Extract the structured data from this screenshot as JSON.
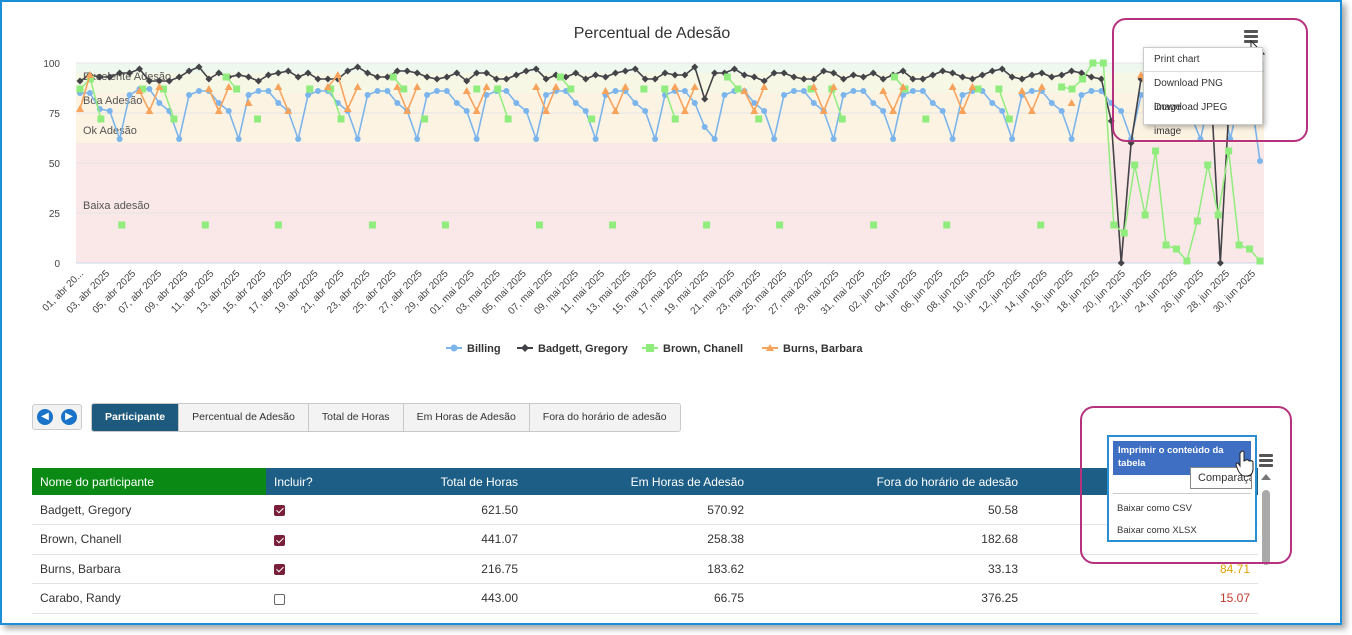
{
  "chart_data": {
    "type": "line",
    "title": "Percentual de Adesão",
    "xlabel": "",
    "ylabel": "",
    "ylim": [
      0,
      100
    ],
    "yticks": [
      0,
      25,
      50,
      75,
      100
    ],
    "bands": [
      {
        "label": "Excelente Adesão",
        "from": 95,
        "to": 100,
        "color": "#eef8ee"
      },
      {
        "label": "Boa Adesão",
        "from": 85,
        "to": 95,
        "color": "#f7f7e6"
      },
      {
        "label": "Ok Adesão",
        "from": 60,
        "to": 85,
        "color": "#fdf3e3"
      },
      {
        "label": "Baixa adesão",
        "from": 0,
        "to": 60,
        "color": "#fae8e8"
      }
    ],
    "x_tick_labels": [
      "01, abr 20...",
      "03, abr 2025",
      "05, abr 2025",
      "07, abr 2025",
      "09, abr 2025",
      "11, abr 2025",
      "13, abr 2025",
      "15, abr 2025",
      "17, abr 2025",
      "19, abr 2025",
      "21, abr 2025",
      "23, abr 2025",
      "25, abr 2025",
      "27, abr 2025",
      "29, abr 2025",
      "01, mai 2025",
      "03, mai 2025",
      "05, mai 2025",
      "07, mai 2025",
      "09, mai 2025",
      "11, mai 2025",
      "13, mai 2025",
      "15, mai 2025",
      "17, mai 2025",
      "19, mai 2025",
      "21, mai 2025",
      "23, mai 2025",
      "25, mai 2025",
      "27, mai 2025",
      "29, mai 2025",
      "31, mai 2025",
      "02, jun 2025",
      "04, jun 2025",
      "06, jun 2025",
      "08, jun 2025",
      "10, jun 2025",
      "12, jun 2025",
      "14, jun 2025",
      "16, jun 2025",
      "18, jun 2025",
      "20, jun 2025",
      "22, jun 2025",
      "24, jun 2025",
      "26, jun 2025",
      "28, jun 2025",
      "30, jun 2025"
    ],
    "legend_position": "bottom-center",
    "series": [
      {
        "name": "Billing",
        "color": "#7cb5ec",
        "marker": "circle",
        "values": [
          85,
          85,
          77,
          76,
          62,
          84,
          87,
          87,
          80,
          76,
          62,
          84,
          86,
          86,
          80,
          76,
          62,
          84,
          86,
          86,
          80,
          76,
          62,
          84,
          86,
          86,
          80,
          76,
          62,
          84,
          86,
          86,
          80,
          76,
          62,
          84,
          86,
          86,
          80,
          76,
          62,
          84,
          86,
          86,
          80,
          76,
          62,
          84,
          86,
          86,
          80,
          76,
          62,
          84,
          86,
          86,
          80,
          76,
          62,
          84,
          86,
          86,
          80,
          68,
          62,
          84,
          86,
          86,
          80,
          76,
          62,
          84,
          86,
          86,
          80,
          76,
          62,
          84,
          86,
          86,
          80,
          76,
          62,
          84,
          86,
          86,
          80,
          76,
          62,
          84,
          86,
          86,
          80,
          76,
          62,
          84,
          86,
          86,
          80,
          76,
          62,
          84,
          86,
          86,
          80,
          76,
          62,
          84,
          84,
          85,
          84,
          80,
          74,
          62,
          84,
          86,
          62,
          84,
          86,
          51
        ]
      },
      {
        "name": "Badgett, Gregory",
        "color": "#434348",
        "marker": "diamond",
        "values": [
          91,
          94,
          93,
          93,
          95,
          95,
          97,
          91,
          91,
          91,
          93,
          96,
          98,
          92,
          95,
          93,
          94,
          93,
          91,
          94,
          95,
          96,
          93,
          95,
          92,
          92,
          92,
          96,
          98,
          95,
          93,
          93,
          96,
          96,
          95,
          93,
          92,
          93,
          95,
          91,
          95,
          95,
          92,
          92,
          94,
          96,
          97,
          92,
          94,
          93,
          95,
          92,
          94,
          93,
          95,
          96,
          97,
          92,
          92,
          95,
          94,
          94,
          98,
          82,
          95,
          95,
          97,
          94,
          93,
          91,
          95,
          95,
          93,
          92,
          92,
          96,
          95,
          92,
          94,
          93,
          95,
          92,
          94,
          96,
          92,
          92,
          94,
          96,
          95,
          93,
          92,
          94,
          96,
          97,
          93,
          92,
          94,
          95,
          93,
          94,
          96,
          95,
          93,
          92,
          71,
          0,
          60,
          92,
          93,
          94,
          95,
          94,
          93,
          94,
          92,
          0,
          90,
          93,
          94,
          96
        ]
      },
      {
        "name": "Brown, Chanell",
        "color": "#90ed7d",
        "marker": "square",
        "values": [
          87,
          92,
          72,
          null,
          19,
          null,
          87,
          null,
          87,
          72,
          null,
          null,
          19,
          null,
          93,
          87,
          null,
          72,
          null,
          19,
          null,
          null,
          87,
          null,
          87,
          72,
          null,
          null,
          19,
          null,
          93,
          87,
          null,
          72,
          null,
          19,
          null,
          null,
          87,
          null,
          87,
          72,
          null,
          null,
          19,
          null,
          93,
          87,
          null,
          72,
          null,
          19,
          null,
          null,
          87,
          null,
          87,
          72,
          null,
          null,
          19,
          null,
          93,
          87,
          null,
          72,
          null,
          19,
          null,
          null,
          87,
          null,
          87,
          72,
          null,
          null,
          19,
          null,
          93,
          87,
          null,
          72,
          null,
          19,
          null,
          null,
          87,
          null,
          87,
          72,
          null,
          null,
          19,
          null,
          88,
          87,
          92,
          100,
          100,
          19,
          15,
          49,
          24,
          56,
          9,
          7,
          1,
          21,
          49,
          24,
          56,
          9,
          7,
          1
        ]
      },
      {
        "name": "Burns, Barbara",
        "color": "#f7a35c",
        "marker": "triangle",
        "values": [
          77,
          94,
          null,
          null,
          null,
          null,
          86,
          76,
          88,
          null,
          null,
          null,
          null,
          87,
          76,
          88,
          null,
          80,
          null,
          null,
          88,
          76,
          null,
          null,
          null,
          88,
          94,
          77,
          88,
          null,
          null,
          null,
          88,
          76,
          88,
          null,
          null,
          null,
          null,
          86,
          76,
          88,
          null,
          null,
          null,
          null,
          88,
          76,
          88,
          null,
          null,
          null,
          null,
          86,
          76,
          88,
          null,
          null,
          null,
          null,
          88,
          76,
          88,
          null,
          null,
          null,
          null,
          86,
          76,
          88,
          null,
          null,
          null,
          null,
          88,
          76,
          88,
          null,
          null,
          null,
          null,
          86,
          76,
          88,
          null,
          null,
          null,
          null,
          88,
          76,
          88,
          null,
          null,
          null,
          null,
          86,
          76,
          88,
          null,
          null,
          80,
          null,
          null,
          null,
          null,
          null,
          null,
          94,
          80,
          null,
          null,
          null,
          null,
          null,
          null,
          null,
          null,
          null,
          null,
          null
        ]
      }
    ]
  },
  "chart_menu": {
    "items": [
      "Print chart",
      "Download PNG image",
      "Download JPEG image"
    ]
  },
  "nav": {
    "prev_icon": "arrow-left-icon",
    "next_icon": "arrow-right-icon"
  },
  "tabs": [
    {
      "label": "Participante",
      "active": true
    },
    {
      "label": "Percentual de Adesão",
      "active": false
    },
    {
      "label": "Total de Horas",
      "active": false
    },
    {
      "label": "Em Horas de Adesão",
      "active": false
    },
    {
      "label": "Fora do horário de adesão",
      "active": false
    }
  ],
  "table": {
    "headers": [
      "Nome do participante",
      "Incluir?",
      "Total de Horas",
      "Em Horas de Adesão",
      "Fora do horário de adesão"
    ],
    "rows": [
      {
        "name": "Badgett, Gregory",
        "included": true,
        "total": "621.50",
        "em": "570.92",
        "fora": "50.58",
        "pct": ""
      },
      {
        "name": "Brown, Chanell",
        "included": true,
        "total": "441.07",
        "em": "258.38",
        "fora": "182.68",
        "pct": ""
      },
      {
        "name": "Burns, Barbara",
        "included": true,
        "total": "216.75",
        "em": "183.62",
        "fora": "33.13",
        "pct": "84.71"
      },
      {
        "name": "Carabo, Randy",
        "included": false,
        "total": "443.00",
        "em": "66.75",
        "fora": "376.25",
        "pct": "15.07"
      }
    ]
  },
  "table_menu": {
    "print_label": "Imprimir o conteúdo da tabela",
    "csv_label": "Baixar como CSV",
    "xlsx_label": "Baixar como XLSX",
    "tooltip": "Comparação"
  },
  "colors": {
    "highlight": "#b5327f",
    "accent": "#1d5e86",
    "name_header": "#0a8a15"
  }
}
